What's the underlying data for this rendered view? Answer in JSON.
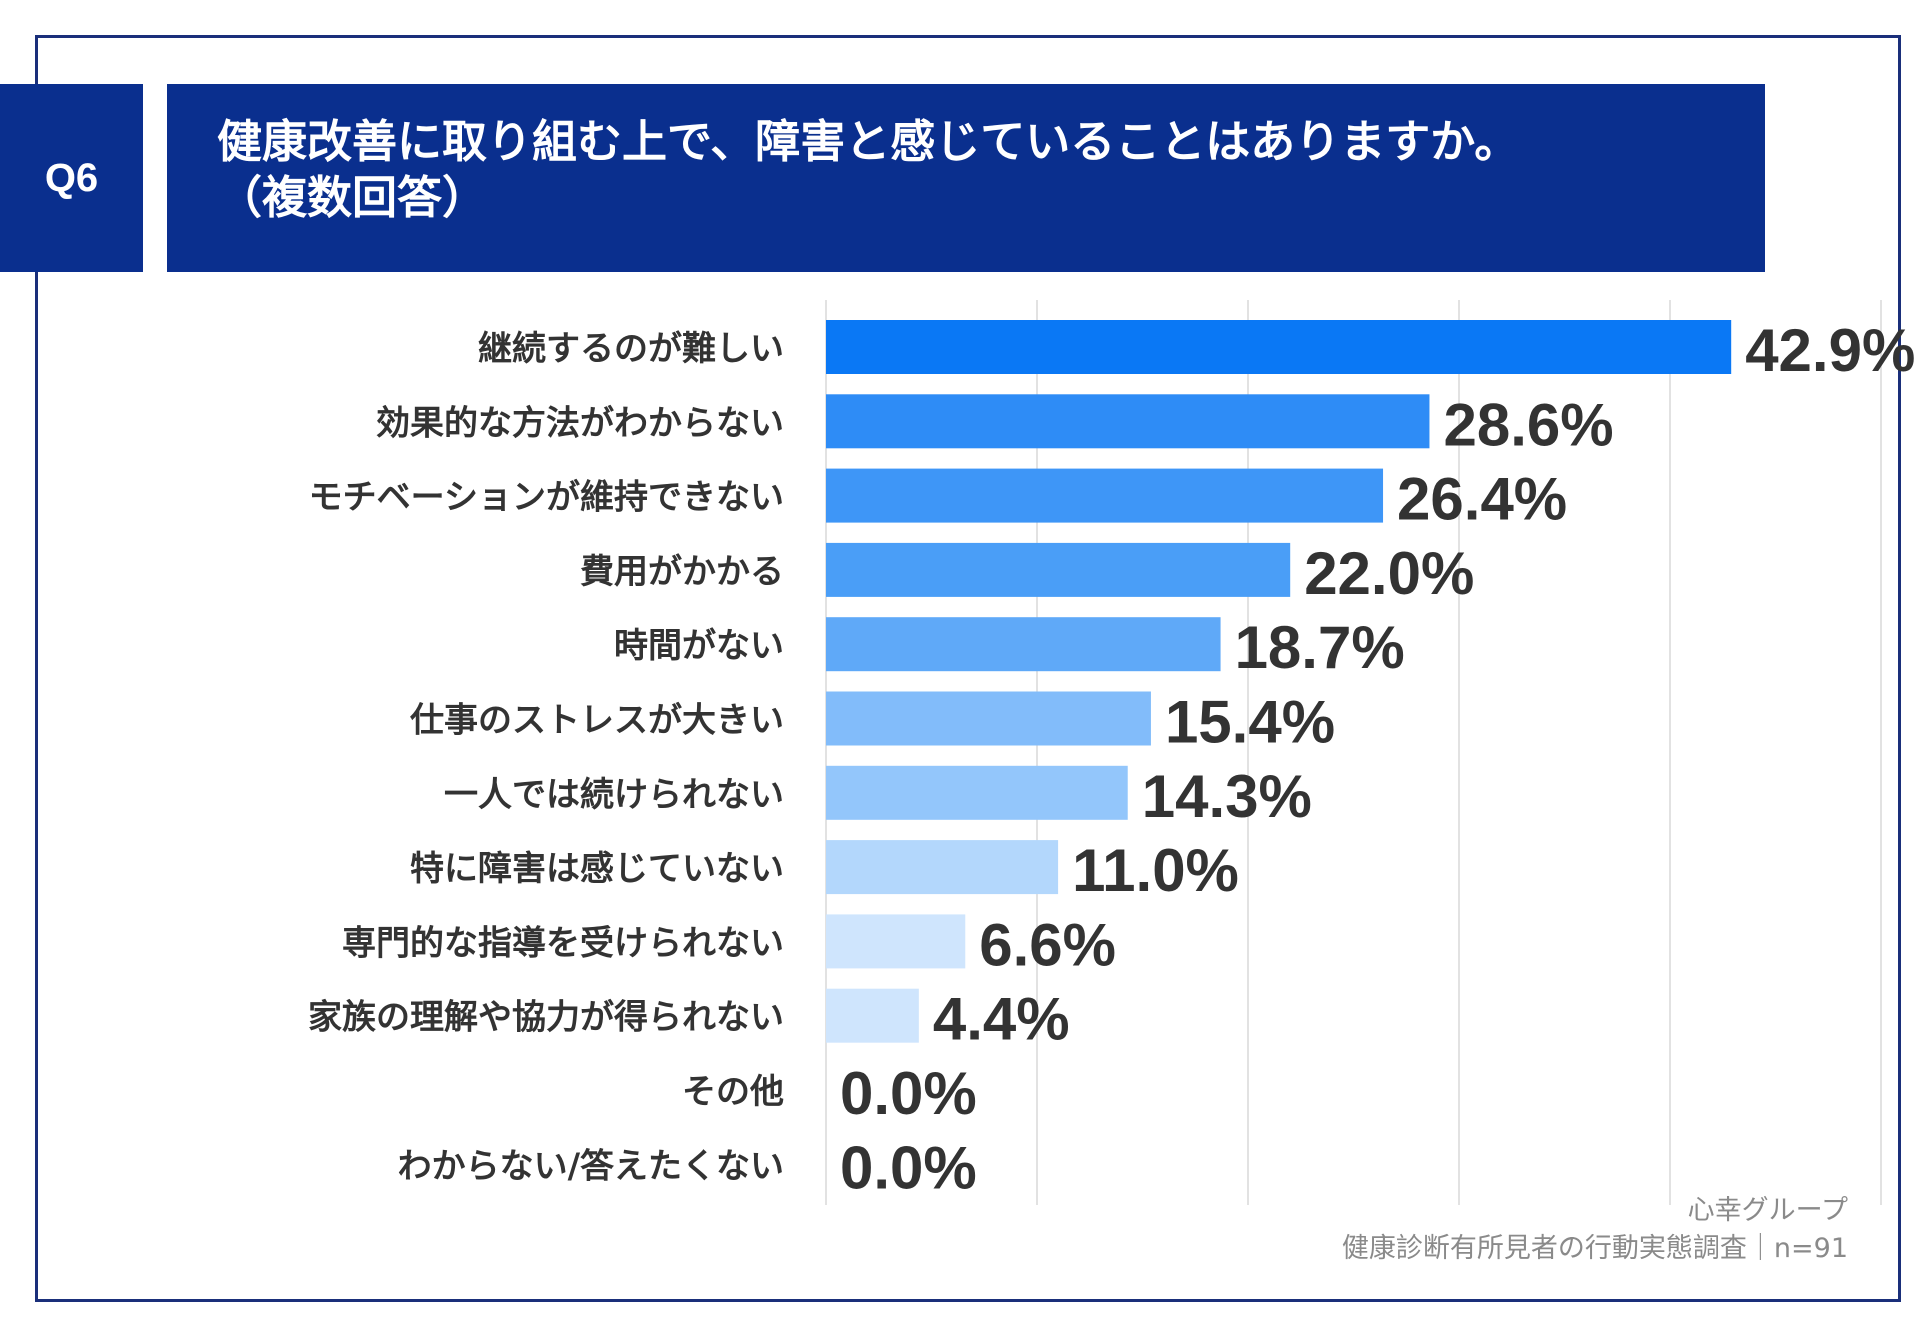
{
  "header": {
    "badge": "Q6",
    "title_line1": "健康改善に取り組む上で、障害と感じていることはありますか。",
    "title_line2": "（複数回答）"
  },
  "colors": {
    "header_bg": "#0a2f8e",
    "frame": "#1a2f7a",
    "bars": [
      "#0a78f5",
      "#2e8cf6",
      "#3e96f7",
      "#4a9ef7",
      "#5fa9f8",
      "#82bcfa",
      "#93c6fb",
      "#b3d7fc",
      "#cfe5fd",
      "#cfe5fd",
      "#cfe5fd",
      "#cfe5fd"
    ],
    "value_text": "#333333",
    "label_text": "#333333"
  },
  "chart_data": {
    "type": "bar",
    "orientation": "horizontal",
    "categories": [
      "継続するのが難しい",
      "効果的な方法がわからない",
      "モチベーションが維持できない",
      "費用がかかる",
      "時間がない",
      "仕事のストレスが大きい",
      "一人では続けられない",
      "特に障害は感じていない",
      "専門的な指導を受けられない",
      "家族の理解や協力が得られない",
      "その他",
      "わからない/答えたくない"
    ],
    "values": [
      42.9,
      28.6,
      26.4,
      22.0,
      18.7,
      15.4,
      14.3,
      11.0,
      6.6,
      4.4,
      0.0,
      0.0
    ],
    "value_labels": [
      "42.9%",
      "28.6%",
      "26.4%",
      "22.0%",
      "18.7%",
      "15.4%",
      "14.3%",
      "11.0%",
      "6.6%",
      "4.4%",
      "0.0%",
      "0.0%"
    ],
    "xlim": [
      0,
      50
    ],
    "grid_step": 10,
    "grid": true,
    "unit": "%"
  },
  "source": {
    "line1": "心幸グループ",
    "line2": "健康診断有所見者の行動実態調査｜n=91"
  }
}
